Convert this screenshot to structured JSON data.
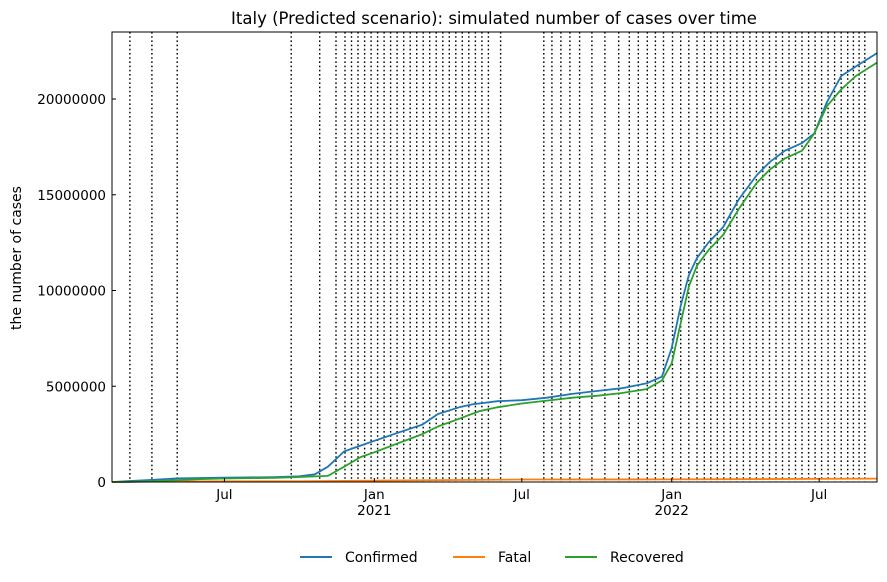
{
  "chart_data": {
    "type": "line",
    "title": "Italy (Predicted scenario): simulated number of cases over time",
    "xlabel": "",
    "ylabel": "the number of cases",
    "x_range": [
      "2020-02-14",
      "2022-09-10"
    ],
    "ylim": [
      0,
      23500000
    ],
    "y_ticks": [
      0,
      5000000,
      10000000,
      15000000,
      20000000
    ],
    "y_tick_labels": [
      "0",
      "5000000",
      "10000000",
      "15000000",
      "20000000"
    ],
    "x_ticks": [
      {
        "date": "2020-07-01",
        "label": "Jul",
        "year": ""
      },
      {
        "date": "2021-01-01",
        "label": "Jan",
        "year": "2021"
      },
      {
        "date": "2021-07-01",
        "label": "Jul",
        "year": ""
      },
      {
        "date": "2022-01-01",
        "label": "Jan",
        "year": "2022"
      },
      {
        "date": "2022-07-01",
        "label": "Jul",
        "year": ""
      }
    ],
    "grid": false,
    "legend_position": "bottom-center",
    "change_dates": [
      "2020-03-07",
      "2020-04-03",
      "2020-05-04",
      "2020-09-21",
      "2020-10-26",
      "2020-11-15",
      "2020-11-26",
      "2020-12-04",
      "2020-12-12",
      "2020-12-20",
      "2020-12-28",
      "2021-01-05",
      "2021-01-13",
      "2021-01-21",
      "2021-01-29",
      "2021-02-06",
      "2021-02-14",
      "2021-02-22",
      "2021-03-02",
      "2021-03-10",
      "2021-03-18",
      "2021-03-26",
      "2021-04-03",
      "2021-04-11",
      "2021-04-19",
      "2021-04-27",
      "2021-05-05",
      "2021-05-13",
      "2021-05-21",
      "2021-06-05",
      "2021-07-28",
      "2021-08-07",
      "2021-08-18",
      "2021-08-29",
      "2021-09-10",
      "2021-09-25",
      "2021-10-11",
      "2021-10-28",
      "2021-11-10",
      "2021-11-21",
      "2021-12-02",
      "2021-12-12",
      "2021-12-22",
      "2022-01-02",
      "2022-01-12",
      "2022-01-22",
      "2022-02-01",
      "2022-02-10",
      "2022-02-18",
      "2022-02-26",
      "2022-03-06",
      "2022-03-14",
      "2022-03-22",
      "2022-03-30",
      "2022-04-07",
      "2022-04-15",
      "2022-04-23",
      "2022-05-01",
      "2022-05-09",
      "2022-05-17",
      "2022-05-25",
      "2022-06-02",
      "2022-06-10",
      "2022-06-18",
      "2022-06-26",
      "2022-07-04",
      "2022-07-12",
      "2022-07-20",
      "2022-07-28",
      "2022-08-05",
      "2022-08-12",
      "2022-08-19",
      "2022-08-26"
    ],
    "series": [
      {
        "name": "Confirmed",
        "color": "#1f77b4",
        "points": [
          [
            "2020-02-14",
            0
          ],
          [
            "2020-03-07",
            50000
          ],
          [
            "2020-04-03",
            110000
          ],
          [
            "2020-05-04",
            190000
          ],
          [
            "2020-06-01",
            210000
          ],
          [
            "2020-07-01",
            225000
          ],
          [
            "2020-08-01",
            240000
          ],
          [
            "2020-09-01",
            255000
          ],
          [
            "2020-10-01",
            300000
          ],
          [
            "2020-10-20",
            400000
          ],
          [
            "2020-11-05",
            800000
          ],
          [
            "2020-11-25",
            1600000
          ],
          [
            "2020-12-15",
            1900000
          ],
          [
            "2021-01-01",
            2150000
          ],
          [
            "2021-02-01",
            2600000
          ],
          [
            "2021-03-01",
            3000000
          ],
          [
            "2021-03-20",
            3550000
          ],
          [
            "2021-04-15",
            3900000
          ],
          [
            "2021-05-01",
            4050000
          ],
          [
            "2021-06-01",
            4220000
          ],
          [
            "2021-07-01",
            4270000
          ],
          [
            "2021-08-01",
            4400000
          ],
          [
            "2021-09-01",
            4600000
          ],
          [
            "2021-10-01",
            4750000
          ],
          [
            "2021-11-01",
            4900000
          ],
          [
            "2021-12-01",
            5150000
          ],
          [
            "2021-12-20",
            5500000
          ],
          [
            "2022-01-01",
            7000000
          ],
          [
            "2022-01-12",
            9200000
          ],
          [
            "2022-01-22",
            10800000
          ],
          [
            "2022-02-01",
            11700000
          ],
          [
            "2022-02-15",
            12500000
          ],
          [
            "2022-03-05",
            13300000
          ],
          [
            "2022-03-25",
            14800000
          ],
          [
            "2022-04-15",
            16000000
          ],
          [
            "2022-05-01",
            16700000
          ],
          [
            "2022-05-20",
            17300000
          ],
          [
            "2022-06-10",
            17700000
          ],
          [
            "2022-06-25",
            18200000
          ],
          [
            "2022-07-10",
            19800000
          ],
          [
            "2022-07-28",
            21200000
          ],
          [
            "2022-08-15",
            21700000
          ],
          [
            "2022-09-10",
            22400000
          ]
        ]
      },
      {
        "name": "Fatal",
        "color": "#ff7f0e",
        "points": [
          [
            "2020-02-14",
            0
          ],
          [
            "2020-05-01",
            30000
          ],
          [
            "2020-10-01",
            36000
          ],
          [
            "2021-01-01",
            75000
          ],
          [
            "2021-07-01",
            128000
          ],
          [
            "2022-01-01",
            138000
          ],
          [
            "2022-09-10",
            176000
          ]
        ]
      },
      {
        "name": "Recovered",
        "color": "#2ca02c",
        "points": [
          [
            "2020-02-14",
            0
          ],
          [
            "2020-03-07",
            5000
          ],
          [
            "2020-04-03",
            30000
          ],
          [
            "2020-05-04",
            100000
          ],
          [
            "2020-06-01",
            150000
          ],
          [
            "2020-07-01",
            185000
          ],
          [
            "2020-08-01",
            205000
          ],
          [
            "2020-09-01",
            220000
          ],
          [
            "2020-10-01",
            260000
          ],
          [
            "2020-11-05",
            320000
          ],
          [
            "2020-11-25",
            800000
          ],
          [
            "2020-12-15",
            1300000
          ],
          [
            "2021-01-01",
            1550000
          ],
          [
            "2021-02-01",
            2050000
          ],
          [
            "2021-03-01",
            2500000
          ],
          [
            "2021-03-20",
            2900000
          ],
          [
            "2021-04-15",
            3300000
          ],
          [
            "2021-05-10",
            3700000
          ],
          [
            "2021-06-01",
            3900000
          ],
          [
            "2021-07-01",
            4100000
          ],
          [
            "2021-08-01",
            4250000
          ],
          [
            "2021-09-01",
            4400000
          ],
          [
            "2021-10-01",
            4500000
          ],
          [
            "2021-11-01",
            4650000
          ],
          [
            "2021-12-01",
            4850000
          ],
          [
            "2021-12-20",
            5300000
          ],
          [
            "2022-01-01",
            6200000
          ],
          [
            "2022-01-12",
            8300000
          ],
          [
            "2022-01-22",
            10200000
          ],
          [
            "2022-02-01",
            11300000
          ],
          [
            "2022-02-15",
            12100000
          ],
          [
            "2022-03-05",
            12900000
          ],
          [
            "2022-03-25",
            14300000
          ],
          [
            "2022-04-15",
            15600000
          ],
          [
            "2022-05-01",
            16300000
          ],
          [
            "2022-05-20",
            16900000
          ],
          [
            "2022-06-10",
            17300000
          ],
          [
            "2022-06-25",
            18200000
          ],
          [
            "2022-07-10",
            19600000
          ],
          [
            "2022-07-28",
            20500000
          ],
          [
            "2022-08-15",
            21200000
          ],
          [
            "2022-09-10",
            21900000
          ]
        ]
      }
    ]
  }
}
